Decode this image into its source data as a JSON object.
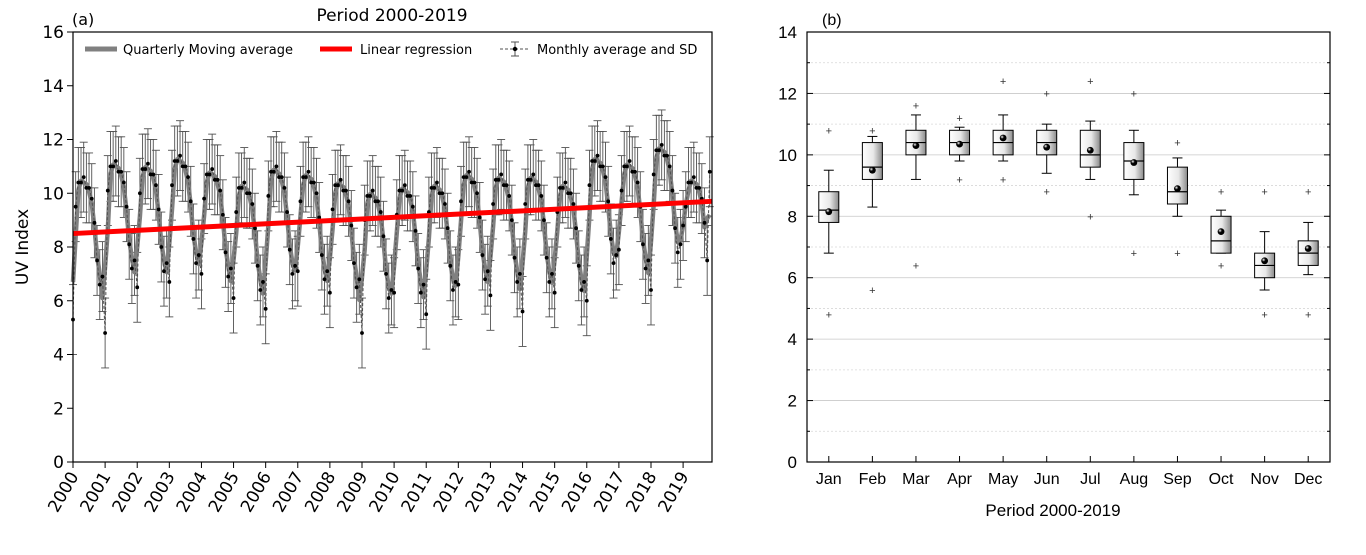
{
  "chart_data": [
    {
      "panel_label": "(a)",
      "type": "line",
      "title": "Period 2000-2019",
      "xlabel": "",
      "ylabel": "UV Index",
      "ylim": [
        0,
        16
      ],
      "yticks": [
        0,
        2,
        4,
        6,
        8,
        10,
        12,
        14,
        16
      ],
      "xlim": [
        2000,
        2019.9
      ],
      "xticks": [
        "2000",
        "2001",
        "2002",
        "2003",
        "2004",
        "2005",
        "2006",
        "2007",
        "2008",
        "2009",
        "2010",
        "2011",
        "2012",
        "2013",
        "2014",
        "2015",
        "2016",
        "2017",
        "2018",
        "2019"
      ],
      "legend": {
        "placement": "top",
        "entries": [
          "Quarterly Moving average",
          "Linear regression",
          "Monthly average and SD"
        ]
      },
      "regression": {
        "x": [
          2000,
          2019.9
        ],
        "y": [
          8.5,
          9.7
        ]
      },
      "monthly_climatology_used_for_series": [
        5.5,
        9.5,
        10.4,
        10.4,
        10.6,
        10.2,
        10.2,
        9.8,
        8.9,
        7.5,
        6.6,
        6.9
      ],
      "year_offsets": [
        0.0,
        0.6,
        0.5,
        0.8,
        0.3,
        -0.2,
        0.4,
        0.2,
        -0.1,
        -0.5,
        -0.3,
        -0.2,
        0.2,
        0.1,
        0.1,
        -0.2,
        0.8,
        0.6,
        1.2,
        0.0
      ],
      "yearly_minimum": [
        5.3,
        4.8,
        6.5,
        6.7,
        7.0,
        6.1,
        5.7,
        7.1,
        6.3,
        4.8,
        6.3,
        5.5,
        6.6,
        6.2,
        5.6,
        6.3,
        6.0,
        7.9,
        6.4,
        8.8
      ],
      "sd_estimate": 1.3,
      "last_points": {
        "monthly": [
          8.7,
          10.8
        ],
        "moving_average": [
          8.6,
          9.2
        ]
      }
    },
    {
      "panel_label": "(b)",
      "type": "box",
      "title": "",
      "xlabel": "Period 2000-2019",
      "ylabel": "",
      "ylim": [
        0,
        14
      ],
      "yticks": [
        0,
        2,
        4,
        6,
        8,
        10,
        12,
        14
      ],
      "grid": true,
      "categories": [
        "Jan",
        "Feb",
        "Mar",
        "Apr",
        "May",
        "Jun",
        "Jul",
        "Aug",
        "Sep",
        "Oct",
        "Nov",
        "Dec"
      ],
      "boxes": [
        {
          "whisker_low": 6.8,
          "q1": 7.8,
          "median": 8.2,
          "q3": 8.8,
          "whisker_high": 9.5,
          "mean": 8.15,
          "outliers": [
            4.8,
            10.8
          ]
        },
        {
          "whisker_low": 8.3,
          "q1": 9.2,
          "median": 9.6,
          "q3": 10.4,
          "whisker_high": 10.6,
          "mean": 9.5,
          "outliers": [
            5.6,
            10.8
          ]
        },
        {
          "whisker_low": 9.2,
          "q1": 10.0,
          "median": 10.4,
          "q3": 10.8,
          "whisker_high": 11.3,
          "mean": 10.3,
          "outliers": [
            6.4,
            11.6
          ]
        },
        {
          "whisker_low": 9.8,
          "q1": 10.0,
          "median": 10.4,
          "q3": 10.8,
          "whisker_high": 10.9,
          "mean": 10.35,
          "outliers": [
            9.2,
            11.2
          ]
        },
        {
          "whisker_low": 9.8,
          "q1": 10.0,
          "median": 10.4,
          "q3": 10.8,
          "whisker_high": 11.3,
          "mean": 10.55,
          "outliers": [
            9.2,
            12.4
          ]
        },
        {
          "whisker_low": 9.4,
          "q1": 10.0,
          "median": 10.4,
          "q3": 10.8,
          "whisker_high": 11.0,
          "mean": 10.25,
          "outliers": [
            8.8,
            12.0
          ]
        },
        {
          "whisker_low": 9.2,
          "q1": 9.6,
          "median": 10.0,
          "q3": 10.8,
          "whisker_high": 11.1,
          "mean": 10.15,
          "outliers": [
            8.0,
            12.4
          ]
        },
        {
          "whisker_low": 8.7,
          "q1": 9.2,
          "median": 9.8,
          "q3": 10.4,
          "whisker_high": 10.8,
          "mean": 9.75,
          "outliers": [
            6.8,
            12.0
          ]
        },
        {
          "whisker_low": 8.0,
          "q1": 8.4,
          "median": 8.8,
          "q3": 9.6,
          "whisker_high": 9.9,
          "mean": 8.9,
          "outliers": [
            6.8,
            10.4
          ]
        },
        {
          "whisker_low": 6.8,
          "q1": 6.8,
          "median": 7.2,
          "q3": 8.0,
          "whisker_high": 8.2,
          "mean": 7.5,
          "outliers": [
            6.4,
            8.8
          ]
        },
        {
          "whisker_low": 5.6,
          "q1": 6.0,
          "median": 6.4,
          "q3": 6.8,
          "whisker_high": 7.5,
          "mean": 6.55,
          "outliers": [
            4.8,
            8.8
          ]
        },
        {
          "whisker_low": 6.1,
          "q1": 6.4,
          "median": 6.8,
          "q3": 7.2,
          "whisker_high": 7.8,
          "mean": 6.95,
          "outliers": [
            4.8,
            8.8
          ]
        }
      ]
    }
  ],
  "colors": {
    "moving_average": "#808080",
    "regression": "#ff0000",
    "monthly": "#505050",
    "axis": "#000000",
    "grid": "#cccccc"
  }
}
